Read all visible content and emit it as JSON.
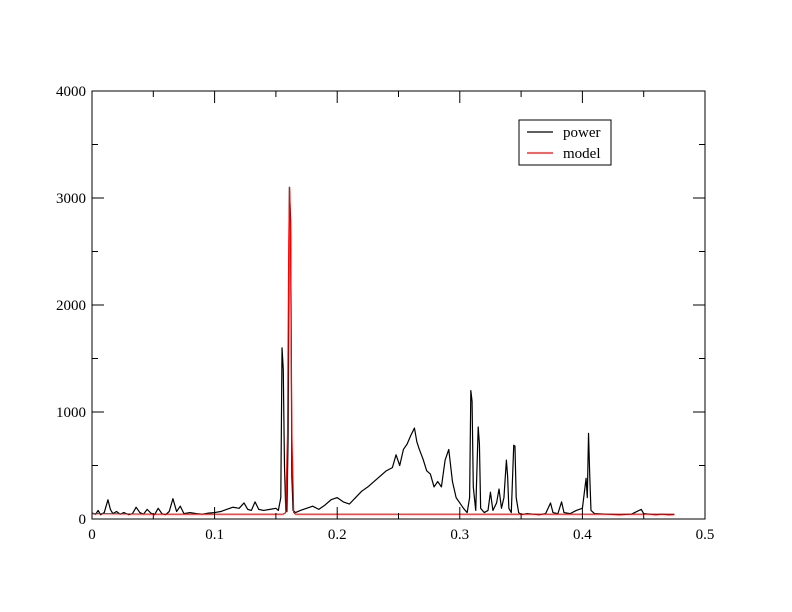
{
  "chart_data": {
    "type": "line",
    "title": "",
    "xlabel": "",
    "ylabel": "",
    "xlim": [
      0,
      0.5
    ],
    "ylim": [
      0,
      4000
    ],
    "x_ticks": [
      0,
      0.1,
      0.2,
      0.3,
      0.4,
      0.5
    ],
    "x_tick_labels": [
      "0",
      "0.1",
      "0.2",
      "0.3",
      "0.4",
      "0.5"
    ],
    "y_ticks": [
      0,
      1000,
      2000,
      3000,
      4000
    ],
    "y_tick_labels": [
      "0",
      "1000",
      "2000",
      "3000",
      "4000"
    ],
    "grid": false,
    "legend_position": "top-right",
    "legend": [
      "power",
      "model"
    ],
    "series": [
      {
        "name": "power",
        "color": "#000000",
        "points": [
          [
            0.0,
            55
          ],
          [
            0.003,
            45
          ],
          [
            0.005,
            80
          ],
          [
            0.007,
            40
          ],
          [
            0.01,
            60
          ],
          [
            0.013,
            180
          ],
          [
            0.015,
            90
          ],
          [
            0.017,
            50
          ],
          [
            0.02,
            70
          ],
          [
            0.023,
            45
          ],
          [
            0.026,
            60
          ],
          [
            0.03,
            40
          ],
          [
            0.033,
            50
          ],
          [
            0.036,
            110
          ],
          [
            0.039,
            60
          ],
          [
            0.042,
            45
          ],
          [
            0.045,
            90
          ],
          [
            0.048,
            55
          ],
          [
            0.051,
            40
          ],
          [
            0.054,
            100
          ],
          [
            0.057,
            50
          ],
          [
            0.06,
            40
          ],
          [
            0.063,
            70
          ],
          [
            0.066,
            190
          ],
          [
            0.069,
            70
          ],
          [
            0.072,
            120
          ],
          [
            0.075,
            50
          ],
          [
            0.08,
            60
          ],
          [
            0.085,
            50
          ],
          [
            0.09,
            45
          ],
          [
            0.095,
            55
          ],
          [
            0.1,
            60
          ],
          [
            0.105,
            70
          ],
          [
            0.11,
            90
          ],
          [
            0.115,
            110
          ],
          [
            0.12,
            100
          ],
          [
            0.124,
            150
          ],
          [
            0.127,
            90
          ],
          [
            0.13,
            80
          ],
          [
            0.133,
            160
          ],
          [
            0.136,
            90
          ],
          [
            0.14,
            80
          ],
          [
            0.145,
            90
          ],
          [
            0.15,
            100
          ],
          [
            0.152,
            80
          ],
          [
            0.154,
            200
          ],
          [
            0.155,
            1600
          ],
          [
            0.156,
            1400
          ],
          [
            0.157,
            500
          ],
          [
            0.158,
            90
          ],
          [
            0.159,
            70
          ],
          [
            0.16,
            800
          ],
          [
            0.161,
            3100
          ],
          [
            0.162,
            2800
          ],
          [
            0.163,
            400
          ],
          [
            0.164,
            80
          ],
          [
            0.166,
            60
          ],
          [
            0.17,
            80
          ],
          [
            0.175,
            100
          ],
          [
            0.18,
            120
          ],
          [
            0.185,
            90
          ],
          [
            0.19,
            130
          ],
          [
            0.195,
            180
          ],
          [
            0.2,
            200
          ],
          [
            0.205,
            160
          ],
          [
            0.21,
            140
          ],
          [
            0.215,
            200
          ],
          [
            0.22,
            260
          ],
          [
            0.225,
            300
          ],
          [
            0.23,
            350
          ],
          [
            0.235,
            400
          ],
          [
            0.24,
            450
          ],
          [
            0.245,
            480
          ],
          [
            0.248,
            600
          ],
          [
            0.251,
            500
          ],
          [
            0.254,
            650
          ],
          [
            0.257,
            700
          ],
          [
            0.26,
            780
          ],
          [
            0.263,
            850
          ],
          [
            0.265,
            720
          ],
          [
            0.267,
            650
          ],
          [
            0.27,
            560
          ],
          [
            0.273,
            450
          ],
          [
            0.276,
            420
          ],
          [
            0.279,
            300
          ],
          [
            0.282,
            350
          ],
          [
            0.285,
            300
          ],
          [
            0.288,
            550
          ],
          [
            0.291,
            650
          ],
          [
            0.294,
            350
          ],
          [
            0.297,
            200
          ],
          [
            0.3,
            150
          ],
          [
            0.303,
            100
          ],
          [
            0.306,
            60
          ],
          [
            0.308,
            200
          ],
          [
            0.309,
            1200
          ],
          [
            0.31,
            1100
          ],
          [
            0.311,
            300
          ],
          [
            0.313,
            80
          ],
          [
            0.315,
            860
          ],
          [
            0.316,
            700
          ],
          [
            0.317,
            100
          ],
          [
            0.32,
            60
          ],
          [
            0.323,
            80
          ],
          [
            0.325,
            250
          ],
          [
            0.327,
            80
          ],
          [
            0.33,
            150
          ],
          [
            0.332,
            280
          ],
          [
            0.334,
            100
          ],
          [
            0.336,
            200
          ],
          [
            0.338,
            550
          ],
          [
            0.339,
            400
          ],
          [
            0.34,
            100
          ],
          [
            0.342,
            60
          ],
          [
            0.344,
            690
          ],
          [
            0.345,
            680
          ],
          [
            0.346,
            200
          ],
          [
            0.348,
            60
          ],
          [
            0.35,
            40
          ],
          [
            0.355,
            50
          ],
          [
            0.36,
            45
          ],
          [
            0.365,
            40
          ],
          [
            0.37,
            50
          ],
          [
            0.374,
            150
          ],
          [
            0.376,
            60
          ],
          [
            0.38,
            50
          ],
          [
            0.383,
            160
          ],
          [
            0.385,
            60
          ],
          [
            0.39,
            50
          ],
          [
            0.395,
            80
          ],
          [
            0.4,
            100
          ],
          [
            0.403,
            380
          ],
          [
            0.404,
            200
          ],
          [
            0.405,
            800
          ],
          [
            0.406,
            400
          ],
          [
            0.407,
            80
          ],
          [
            0.41,
            50
          ],
          [
            0.42,
            45
          ],
          [
            0.43,
            40
          ],
          [
            0.44,
            45
          ],
          [
            0.448,
            90
          ],
          [
            0.45,
            50
          ],
          [
            0.455,
            45
          ],
          [
            0.46,
            40
          ],
          [
            0.465,
            45
          ],
          [
            0.47,
            40
          ],
          [
            0.475,
            42
          ]
        ]
      },
      {
        "name": "model",
        "color": "#ff0000",
        "points": [
          [
            0.0,
            50
          ],
          [
            0.05,
            45
          ],
          [
            0.1,
            45
          ],
          [
            0.15,
            45
          ],
          [
            0.156,
            45
          ],
          [
            0.158,
            60
          ],
          [
            0.1595,
            800
          ],
          [
            0.1605,
            2600
          ],
          [
            0.1612,
            3100
          ],
          [
            0.162,
            2600
          ],
          [
            0.163,
            800
          ],
          [
            0.1645,
            60
          ],
          [
            0.166,
            45
          ],
          [
            0.2,
            45
          ],
          [
            0.3,
            45
          ],
          [
            0.4,
            45
          ],
          [
            0.475,
            45
          ]
        ]
      }
    ]
  }
}
